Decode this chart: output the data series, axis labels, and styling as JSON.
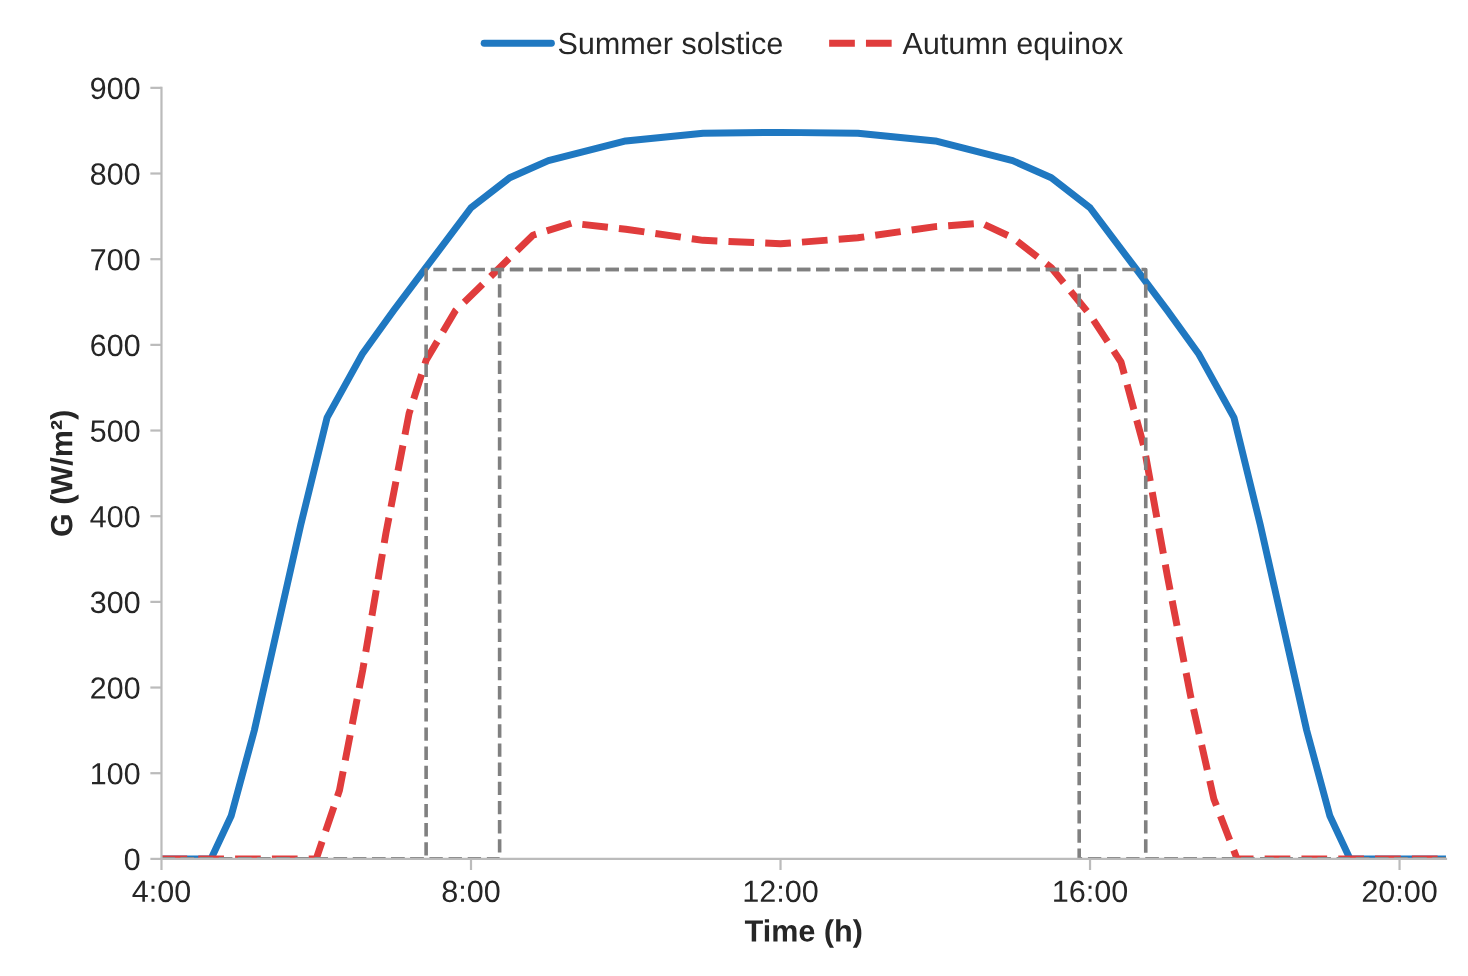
{
  "chart_data": {
    "type": "line",
    "xlabel": "Time (h)",
    "ylabel": "G (W/m²)",
    "xlim": [
      4,
      20.6
    ],
    "xticks": [
      {
        "value": 4,
        "label": "4:00"
      },
      {
        "value": 8,
        "label": "8:00"
      },
      {
        "value": 12,
        "label": "12:00"
      },
      {
        "value": 16,
        "label": "16:00"
      },
      {
        "value": 20,
        "label": "20:00"
      }
    ],
    "ylim": [
      0,
      900
    ],
    "yticks": [
      0,
      100,
      200,
      300,
      400,
      500,
      600,
      700,
      800,
      900
    ],
    "grid": false,
    "legend": "top",
    "marker": "none",
    "series": [
      {
        "name": "Summer solstice",
        "color": "#1f78c1",
        "line_style": "solid",
        "x": [
          4,
          4.64,
          4.9,
          5.2,
          5.5,
          5.8,
          6.14,
          6.6,
          7,
          7.4,
          8,
          8.5,
          9,
          10,
          11,
          12,
          13,
          14,
          15,
          15.5,
          16,
          16.6,
          17,
          17.4,
          17.86,
          18.2,
          18.5,
          18.8,
          19.1,
          19.36,
          20.6
        ],
        "values": [
          0,
          0,
          50,
          150,
          270,
          390,
          515,
          590,
          640,
          688,
          760,
          795,
          815,
          838,
          847,
          848,
          847,
          838,
          815,
          795,
          760,
          688,
          640,
          590,
          515,
          390,
          270,
          150,
          50,
          0,
          0
        ]
      },
      {
        "name": "Autumn equinox",
        "color": "#e03c3c",
        "line_style": "dashed",
        "x": [
          4,
          6.0,
          6.3,
          6.6,
          6.9,
          7.2,
          7.42,
          7.8,
          8.37,
          8.8,
          9.3,
          10,
          11,
          12,
          13,
          14,
          14.6,
          15,
          15.5,
          16,
          16.4,
          16.7,
          17,
          17.3,
          17.6,
          17.9,
          20.6
        ],
        "values": [
          0,
          0,
          80,
          220,
          380,
          520,
          582,
          640,
          690,
          728,
          742,
          735,
          722,
          718,
          725,
          738,
          742,
          725,
          690,
          635,
          580,
          480,
          330,
          190,
          70,
          0,
          0
        ]
      },
      {
        "color": "#808080",
        "line_style": "dashed",
        "x": [
          4,
          7.42,
          7.42,
          16.72,
          16.72,
          20.6
        ],
        "values": [
          0,
          0,
          688,
          688,
          0,
          0
        ]
      },
      {
        "color": "#808080",
        "line_style": "dashed",
        "x": [
          4,
          8.37,
          8.37,
          15.86,
          15.86,
          20.6
        ],
        "values": [
          0,
          0,
          688,
          688,
          0,
          0
        ]
      }
    ]
  }
}
